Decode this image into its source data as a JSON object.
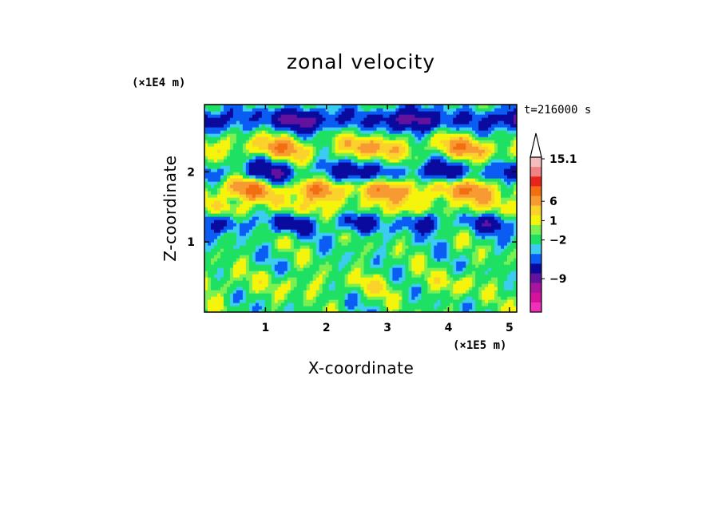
{
  "chart_data": {
    "type": "heatmap",
    "title": "zonal velocity",
    "xlabel": "X-coordinate",
    "ylabel": "Z-coordinate",
    "x_unit": "(×1E5 m)",
    "y_unit": "(×1E4 m)",
    "time_label": "t=216000 s",
    "xlim": [
      0,
      5.12
    ],
    "ylim": [
      0,
      2.96
    ],
    "x_ticks": [
      "1",
      "2",
      "3",
      "4",
      "5"
    ],
    "y_ticks": [
      "1",
      "2"
    ],
    "colorbar": {
      "labels": [
        "15.1",
        "6",
        "1",
        "−2",
        "−9"
      ],
      "extend_max": true,
      "colors": [
        "#f4bcbc",
        "#ef8282",
        "#e8241c",
        "#f36e10",
        "#f89a32",
        "#fbd22c",
        "#f4f40c",
        "#7cf050",
        "#1ee062",
        "#3cccf0",
        "#0a5cf2",
        "#0b0a9f",
        "#62129e",
        "#a8149e",
        "#d8109e",
        "#f030b8"
      ]
    },
    "field_bands": [
      {
        "z": 2.75,
        "u": -4,
        "wavelength": 1.8
      },
      {
        "z": 2.35,
        "u": 3,
        "wavelength": 1.5
      },
      {
        "z": 2.0,
        "u": -3,
        "wavelength": 1.4
      },
      {
        "z": 1.75,
        "u": 4,
        "wavelength": 1.2
      },
      {
        "z": 1.45,
        "u": 2,
        "wavelength": 1.0
      },
      {
        "z": 1.3,
        "u": -3,
        "wavelength": 1.1
      },
      {
        "z": 0.9,
        "u": 0,
        "wavelength": 1.6
      },
      {
        "z": 0.4,
        "u": 1,
        "wavelength": 1.3
      }
    ]
  }
}
